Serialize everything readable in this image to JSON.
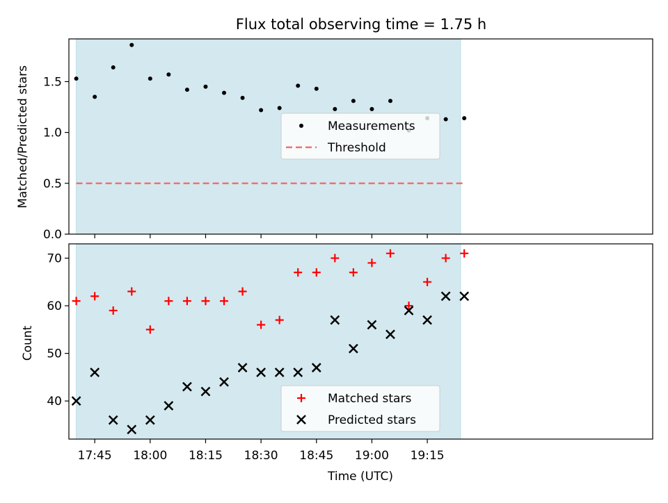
{
  "figure": {
    "title": "Flux total observing time = 1.75 h",
    "xlabel": "Time (UTC)"
  },
  "colors": {
    "shade": "#d4e9ef",
    "shade_edge": "#b9dde5",
    "measurement": "#000000",
    "threshold": "#f07070",
    "matched": "#ff0000",
    "predicted": "#000000"
  },
  "chart_data": [
    {
      "type": "scatter",
      "ylabel": "Matched/Predicted stars",
      "xlim": [
        "17:38",
        "20:16"
      ],
      "ylim": [
        0,
        1.92
      ],
      "yticks": [
        "0.0",
        "0.5",
        "1.0",
        "1.5"
      ],
      "ytick_values": [
        0,
        0.5,
        1.0,
        1.5
      ],
      "xtick_values": [
        "17:45",
        "18:00",
        "18:15",
        "18:30",
        "18:45",
        "19:00",
        "19:15"
      ],
      "xtick_labels": [],
      "shaded_span": [
        "17:40",
        "19:24"
      ],
      "series": [
        {
          "name": "Measurements",
          "marker": "dot",
          "x": [
            "17:40",
            "17:45",
            "17:50",
            "17:55",
            "18:00",
            "18:05",
            "18:10",
            "18:15",
            "18:20",
            "18:25",
            "18:30",
            "18:35",
            "18:40",
            "18:45",
            "18:50",
            "18:55",
            "19:00",
            "19:05",
            "19:10",
            "19:15",
            "19:20",
            "19:25"
          ],
          "values": [
            1.53,
            1.35,
            1.64,
            1.86,
            1.53,
            1.57,
            1.42,
            1.45,
            1.39,
            1.34,
            1.22,
            1.24,
            1.46,
            1.43,
            1.23,
            1.31,
            1.23,
            1.31,
            1.02,
            1.14,
            1.13,
            1.14
          ]
        },
        {
          "name": "Threshold",
          "marker": "dashed-line",
          "x": [
            "17:40",
            "19:25"
          ],
          "values": [
            0.5,
            0.5
          ]
        }
      ],
      "legend": [
        "Measurements",
        "Threshold"
      ],
      "legend_position": "center"
    },
    {
      "type": "scatter",
      "ylabel": "Count",
      "xlim": [
        "17:38",
        "20:16"
      ],
      "ylim": [
        32,
        73
      ],
      "yticks": [
        "40",
        "50",
        "60",
        "70"
      ],
      "ytick_values": [
        40,
        50,
        60,
        70
      ],
      "xtick_values": [
        "17:45",
        "18:00",
        "18:15",
        "18:30",
        "18:45",
        "19:00",
        "19:15"
      ],
      "xtick_labels": [
        "17:45",
        "18:00",
        "18:15",
        "18:30",
        "18:45",
        "19:00",
        "19:15"
      ],
      "shaded_span": [
        "17:40",
        "19:24"
      ],
      "series": [
        {
          "name": "Matched stars",
          "marker": "plus",
          "x": [
            "17:40",
            "17:45",
            "17:50",
            "17:55",
            "18:00",
            "18:05",
            "18:10",
            "18:15",
            "18:20",
            "18:25",
            "18:30",
            "18:35",
            "18:40",
            "18:45",
            "18:50",
            "18:55",
            "19:00",
            "19:05",
            "19:10",
            "19:15",
            "19:20",
            "19:25"
          ],
          "values": [
            61,
            62,
            59,
            63,
            55,
            61,
            61,
            61,
            61,
            63,
            56,
            57,
            67,
            67,
            70,
            67,
            69,
            71,
            60,
            65,
            70,
            71
          ]
        },
        {
          "name": "Predicted stars",
          "marker": "x",
          "x": [
            "17:40",
            "17:45",
            "17:50",
            "17:55",
            "18:00",
            "18:05",
            "18:10",
            "18:15",
            "18:20",
            "18:25",
            "18:30",
            "18:35",
            "18:40",
            "18:45",
            "18:50",
            "18:55",
            "19:00",
            "19:05",
            "19:10",
            "19:15",
            "19:20",
            "19:25"
          ],
          "values": [
            40,
            46,
            36,
            34,
            36,
            39,
            43,
            42,
            44,
            47,
            46,
            46,
            46,
            47,
            57,
            51,
            56,
            54,
            59,
            57,
            62,
            62
          ]
        }
      ],
      "legend": [
        "Matched stars",
        "Predicted stars"
      ],
      "legend_position": "lower center"
    }
  ]
}
